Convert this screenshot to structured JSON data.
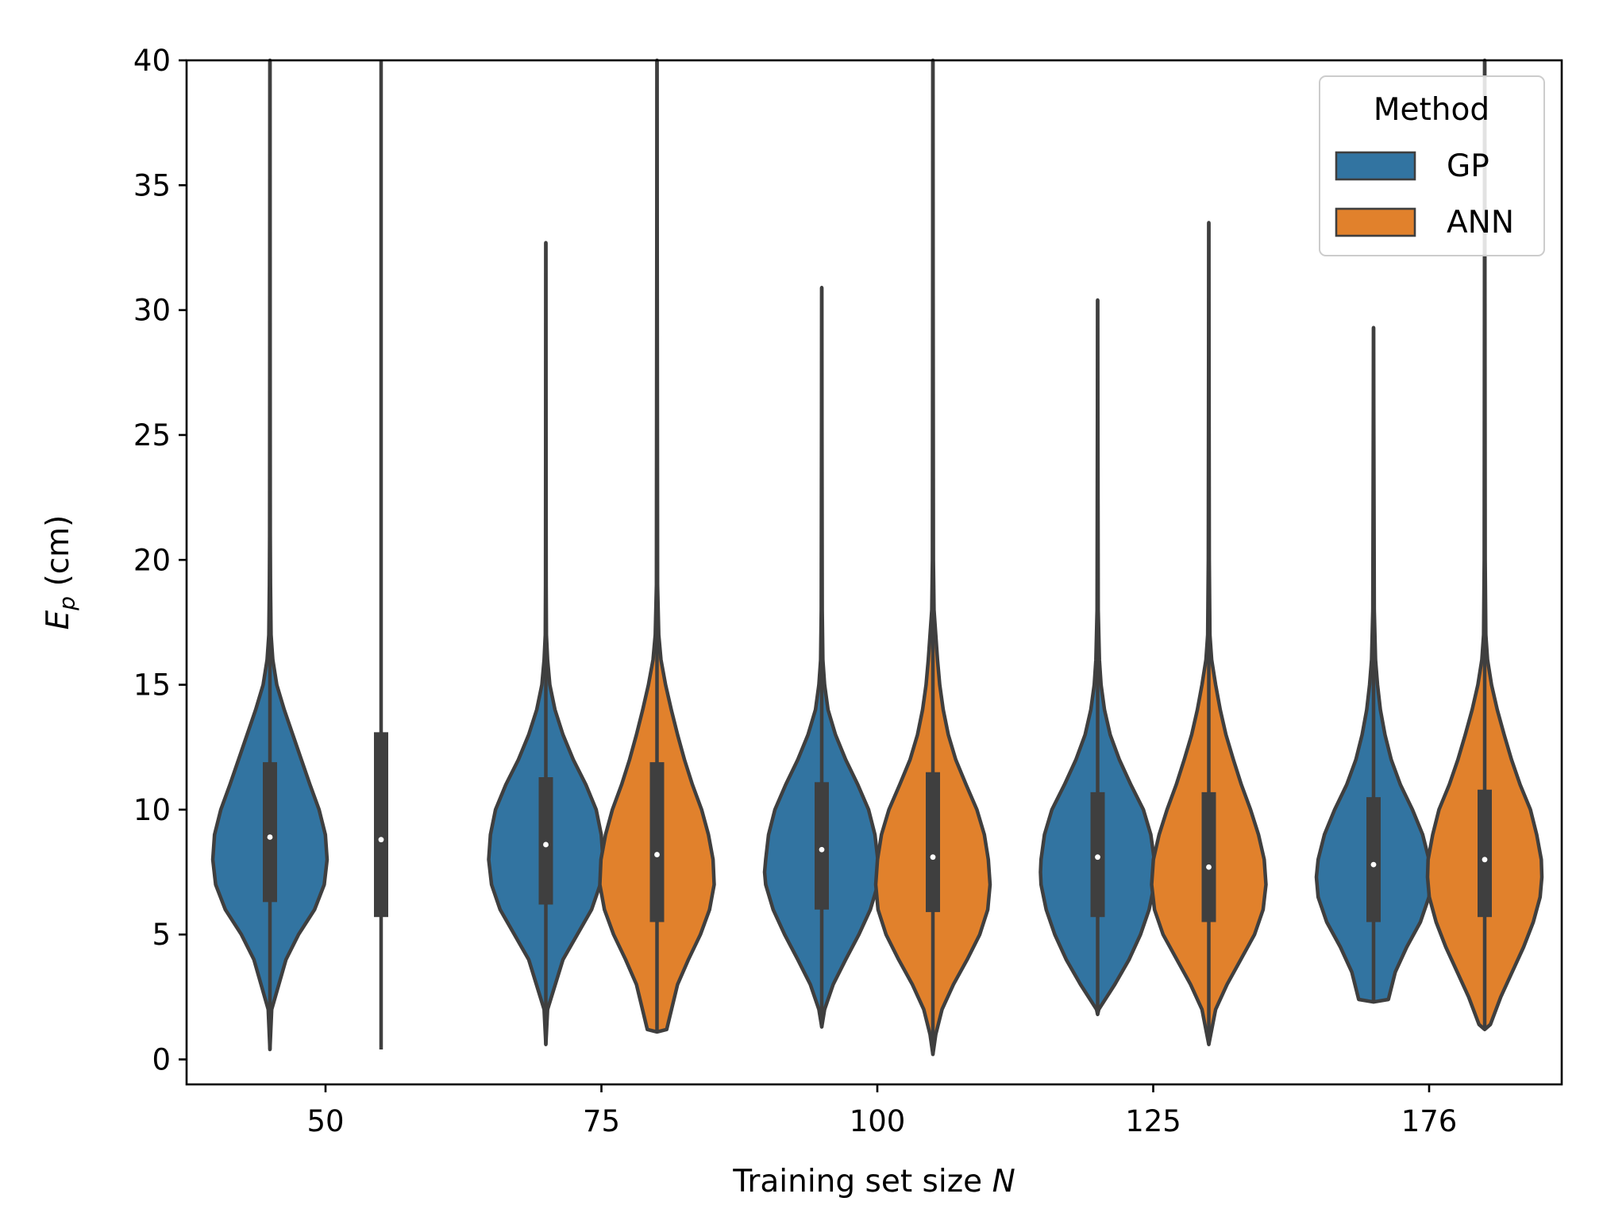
{
  "chart_data": {
    "type": "violin",
    "title": "",
    "xlabel": "Training set size",
    "xlabel_var": "N",
    "ylabel": "E",
    "ylabel_sub": "p",
    "ylabel_unit": " (cm)",
    "ylim": [
      -1,
      40
    ],
    "yticks": [
      0,
      5,
      10,
      15,
      20,
      25,
      30,
      35,
      40
    ],
    "categories": [
      "50",
      "75",
      "100",
      "125",
      "176"
    ],
    "legend": {
      "title": "Method",
      "position": "top-right",
      "entries": [
        {
          "name": "GP",
          "color": "#3274a1"
        },
        {
          "name": "ANN",
          "color": "#e1812c"
        }
      ]
    },
    "colors": {
      "GP": "#3274a1",
      "ANN": "#e1812c",
      "edge": "#3f3f3f",
      "median": "#ffffff"
    },
    "series": [
      {
        "name": "GP",
        "violins": [
          {
            "category": "50",
            "min": 0.4,
            "q1": 6.3,
            "median": 8.9,
            "q3": 11.9,
            "max": 40,
            "body": [
              [
                0.4,
                0.0
              ],
              [
                2,
                0.03
              ],
              [
                4,
                0.28
              ],
              [
                5,
                0.5
              ],
              [
                6,
                0.78
              ],
              [
                7,
                0.95
              ],
              [
                8,
                1.0
              ],
              [
                9,
                0.97
              ],
              [
                10,
                0.86
              ],
              [
                11,
                0.7
              ],
              [
                12,
                0.55
              ],
              [
                13,
                0.4
              ],
              [
                14,
                0.25
              ],
              [
                15,
                0.12
              ],
              [
                16,
                0.05
              ],
              [
                17,
                0.02
              ],
              [
                19,
                0.01
              ],
              [
                21,
                0.005
              ],
              [
                40,
                0.0
              ]
            ]
          },
          {
            "category": "75",
            "min": 0.6,
            "q1": 6.2,
            "median": 8.6,
            "q3": 11.3,
            "max": 32.7,
            "body": [
              [
                0.6,
                0.0
              ],
              [
                2,
                0.03
              ],
              [
                4,
                0.3
              ],
              [
                5,
                0.55
              ],
              [
                6,
                0.8
              ],
              [
                7,
                0.95
              ],
              [
                8,
                1.0
              ],
              [
                9,
                0.97
              ],
              [
                10,
                0.88
              ],
              [
                11,
                0.7
              ],
              [
                12,
                0.48
              ],
              [
                13,
                0.3
              ],
              [
                14,
                0.16
              ],
              [
                15,
                0.07
              ],
              [
                16,
                0.03
              ],
              [
                17,
                0.01
              ],
              [
                19,
                0.005
              ],
              [
                32.7,
                0.0
              ]
            ]
          },
          {
            "category": "100",
            "min": 1.3,
            "q1": 6.0,
            "median": 8.4,
            "q3": 11.1,
            "max": 30.9,
            "body": [
              [
                1.3,
                0.0
              ],
              [
                2,
                0.05
              ],
              [
                3,
                0.2
              ],
              [
                4,
                0.42
              ],
              [
                5,
                0.65
              ],
              [
                6,
                0.85
              ],
              [
                7,
                0.98
              ],
              [
                7.5,
                1.0
              ],
              [
                8,
                0.98
              ],
              [
                9,
                0.93
              ],
              [
                10,
                0.82
              ],
              [
                11,
                0.63
              ],
              [
                12,
                0.42
              ],
              [
                13,
                0.24
              ],
              [
                14,
                0.11
              ],
              [
                15,
                0.05
              ],
              [
                16,
                0.02
              ],
              [
                18,
                0.008
              ],
              [
                30.9,
                0.0
              ]
            ]
          },
          {
            "category": "125",
            "min": 1.8,
            "q1": 5.7,
            "median": 8.1,
            "q3": 10.7,
            "max": 30.4,
            "body": [
              [
                1.8,
                0.0
              ],
              [
                2,
                0.02
              ],
              [
                3,
                0.3
              ],
              [
                4,
                0.55
              ],
              [
                5,
                0.75
              ],
              [
                6,
                0.9
              ],
              [
                7,
                0.99
              ],
              [
                7.5,
                1.0
              ],
              [
                8,
                0.99
              ],
              [
                9,
                0.93
              ],
              [
                10,
                0.8
              ],
              [
                11,
                0.58
              ],
              [
                12,
                0.38
              ],
              [
                13,
                0.22
              ],
              [
                14,
                0.12
              ],
              [
                15,
                0.06
              ],
              [
                16,
                0.03
              ],
              [
                18,
                0.01
              ],
              [
                30.4,
                0.0
              ]
            ]
          },
          {
            "category": "176",
            "min": 2.3,
            "q1": 5.5,
            "median": 7.8,
            "q3": 10.5,
            "max": 29.3,
            "body": [
              [
                2.3,
                0.0
              ],
              [
                2.4,
                0.26
              ],
              [
                3.5,
                0.38
              ],
              [
                4.5,
                0.58
              ],
              [
                5.5,
                0.82
              ],
              [
                6.5,
                0.97
              ],
              [
                7.3,
                1.0
              ],
              [
                8,
                0.97
              ],
              [
                9,
                0.86
              ],
              [
                10,
                0.68
              ],
              [
                11,
                0.47
              ],
              [
                12,
                0.31
              ],
              [
                13,
                0.2
              ],
              [
                14,
                0.12
              ],
              [
                15,
                0.07
              ],
              [
                16,
                0.035
              ],
              [
                18,
                0.012
              ],
              [
                29.3,
                0.0
              ]
            ]
          }
        ]
      },
      {
        "name": "ANN",
        "violins": [
          {
            "category": "50",
            "min": 0.4,
            "q1": 5.7,
            "median": 8.8,
            "q3": 13.1,
            "max": 40,
            "body": [
              [
                0.4,
                0.0
              ],
              [
                40,
                0.0
              ]
            ]
          },
          {
            "category": "75",
            "min": 1.1,
            "q1": 5.5,
            "median": 8.2,
            "q3": 11.9,
            "max": 40,
            "body": [
              [
                1.1,
                0.0
              ],
              [
                1.2,
                0.17
              ],
              [
                3,
                0.36
              ],
              [
                4,
                0.55
              ],
              [
                5,
                0.76
              ],
              [
                6,
                0.92
              ],
              [
                7,
                1.0
              ],
              [
                8,
                0.98
              ],
              [
                9,
                0.9
              ],
              [
                10,
                0.78
              ],
              [
                11,
                0.62
              ],
              [
                12,
                0.48
              ],
              [
                13,
                0.36
              ],
              [
                14,
                0.25
              ],
              [
                15,
                0.15
              ],
              [
                16,
                0.07
              ],
              [
                17,
                0.03
              ],
              [
                19,
                0.01
              ],
              [
                40,
                0.0
              ]
            ]
          },
          {
            "category": "100",
            "min": 0.2,
            "q1": 5.9,
            "median": 8.1,
            "q3": 11.5,
            "max": 40,
            "body": [
              [
                0.2,
                0.0
              ],
              [
                1,
                0.05
              ],
              [
                2,
                0.16
              ],
              [
                3,
                0.36
              ],
              [
                4,
                0.6
              ],
              [
                5,
                0.82
              ],
              [
                6,
                0.96
              ],
              [
                7,
                1.0
              ],
              [
                8,
                0.97
              ],
              [
                9,
                0.9
              ],
              [
                10,
                0.77
              ],
              [
                11,
                0.58
              ],
              [
                12,
                0.4
              ],
              [
                13,
                0.27
              ],
              [
                14,
                0.18
              ],
              [
                15,
                0.12
              ],
              [
                16,
                0.08
              ],
              [
                17,
                0.05
              ],
              [
                18,
                0.02
              ],
              [
                20,
                0.008
              ],
              [
                40,
                0.0
              ]
            ]
          },
          {
            "category": "125",
            "min": 0.6,
            "q1": 5.5,
            "median": 7.7,
            "q3": 10.7,
            "max": 33.5,
            "body": [
              [
                0.6,
                0.0
              ],
              [
                2,
                0.12
              ],
              [
                3,
                0.32
              ],
              [
                4,
                0.56
              ],
              [
                5,
                0.8
              ],
              [
                6,
                0.95
              ],
              [
                7,
                1.0
              ],
              [
                8,
                0.97
              ],
              [
                9,
                0.87
              ],
              [
                10,
                0.73
              ],
              [
                11,
                0.57
              ],
              [
                12,
                0.43
              ],
              [
                13,
                0.3
              ],
              [
                14,
                0.2
              ],
              [
                15,
                0.12
              ],
              [
                16,
                0.05
              ],
              [
                17,
                0.02
              ],
              [
                20,
                0.008
              ],
              [
                33.5,
                0.0
              ]
            ]
          },
          {
            "category": "176",
            "min": 1.2,
            "q1": 5.7,
            "median": 8.0,
            "q3": 10.8,
            "max": 40,
            "body": [
              [
                1.2,
                0.0
              ],
              [
                1.4,
                0.1
              ],
              [
                2.5,
                0.28
              ],
              [
                3.5,
                0.48
              ],
              [
                4.5,
                0.68
              ],
              [
                5.5,
                0.85
              ],
              [
                6.5,
                0.97
              ],
              [
                7.3,
                1.0
              ],
              [
                8,
                0.99
              ],
              [
                9,
                0.91
              ],
              [
                10,
                0.8
              ],
              [
                11,
                0.62
              ],
              [
                12,
                0.47
              ],
              [
                13,
                0.34
              ],
              [
                14,
                0.22
              ],
              [
                15,
                0.12
              ],
              [
                16,
                0.05
              ],
              [
                17,
                0.02
              ],
              [
                20,
                0.008
              ],
              [
                40,
                0.0
              ]
            ]
          }
        ]
      }
    ]
  }
}
